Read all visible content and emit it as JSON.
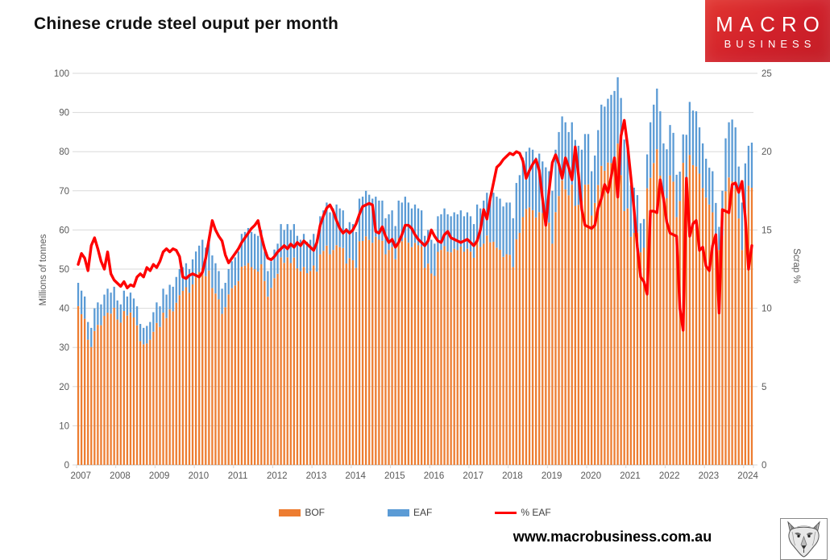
{
  "header": {
    "title": "Chinese crude steel ouput per month",
    "logo": {
      "line1": "MACRO",
      "line2": "BUSINESS",
      "bg_color": "#d0202a",
      "text_color": "#ffffff"
    }
  },
  "footer": {
    "url": "www.macrobusiness.com.au"
  },
  "wolf_stamp": {
    "name": "wolf-drawing"
  },
  "chart_data": {
    "type": "bar",
    "subtype": "stacked-bars-with-line",
    "title": "Chinese crude steel ouput per month",
    "left_axis": {
      "label": "Millions of tonnes",
      "min": 0,
      "max": 100,
      "step": 10
    },
    "right_axis": {
      "label": "Scrap %",
      "min": 0,
      "max": 25,
      "step": 5
    },
    "grid": "horizontal",
    "x_ticks": [
      "2007",
      "2008",
      "2009",
      "2010",
      "2011",
      "2012",
      "2013",
      "2014",
      "2015",
      "2016",
      "2017",
      "2018",
      "2019",
      "2020",
      "2021",
      "2022",
      "2023",
      "2024"
    ],
    "start_month": "2007-01",
    "end_month": "2024-03",
    "legend": [
      {
        "label": "BOF",
        "type": "bar",
        "color": "#ED7D31"
      },
      {
        "label": "EAF",
        "type": "bar",
        "color": "#5B9BD5"
      },
      {
        "label": "% EAF",
        "type": "line",
        "color": "#FF0000"
      }
    ],
    "note": "Bars are stacked monthly crude steel output: BOF bottom segment, EAF top segment (left axis, Mt). EAF segment = total * eaf_pct/100, BOF = total - EAF. Red line = % EAF on right axis (Scrap %).",
    "monthly": {
      "total_mt": [
        46.5,
        44.5,
        43.0,
        36.5,
        35.0,
        40.0,
        41.5,
        41.0,
        43.5,
        45.0,
        44.0,
        45.5,
        42.0,
        41.0,
        44.5,
        43.0,
        44.0,
        42.5,
        40.5,
        36.0,
        35.0,
        35.5,
        36.5,
        39.0,
        41.5,
        40.5,
        45.0,
        43.5,
        46.0,
        45.5,
        48.0,
        50.0,
        50.5,
        51.5,
        50.0,
        52.5,
        54.5,
        56.0,
        57.5,
        55.5,
        58.0,
        53.5,
        51.5,
        49.5,
        45.0,
        46.5,
        50.0,
        52.0,
        53.0,
        54.5,
        59.0,
        59.5,
        60.5,
        59.5,
        59.0,
        58.5,
        60.0,
        54.5,
        49.5,
        52.0,
        55.0,
        56.5,
        61.5,
        60.0,
        61.5,
        60.0,
        61.5,
        58.5,
        57.5,
        59.0,
        57.0,
        57.5,
        59.0,
        57.5,
        63.5,
        65.0,
        67.0,
        64.5,
        65.5,
        66.5,
        65.5,
        65.0,
        60.5,
        62.0,
        61.5,
        59.5,
        68.0,
        68.5,
        70.0,
        69.0,
        68.0,
        68.5,
        67.5,
        67.5,
        63.0,
        64.0,
        65.0,
        61.0,
        67.5,
        67.0,
        68.5,
        67.0,
        65.5,
        66.5,
        65.5,
        65.0,
        58.5,
        60.0,
        57.5,
        56.5,
        63.5,
        64.0,
        65.5,
        64.0,
        63.5,
        64.5,
        64.0,
        65.0,
        63.5,
        64.5,
        63.5,
        61.5,
        66.5,
        65.5,
        67.5,
        69.5,
        68.5,
        69.5,
        68.5,
        68.0,
        66.0,
        67.0,
        67.0,
        63.0,
        72.0,
        74.0,
        78.5,
        80.0,
        81.0,
        80.5,
        78.5,
        79.5,
        77.5,
        76.0,
        75.0,
        70.0,
        80.5,
        85.0,
        89.0,
        87.5,
        85.0,
        87.5,
        83.0,
        81.5,
        80.5,
        84.5,
        84.5,
        75.0,
        79.0,
        85.5,
        92.0,
        91.5,
        93.5,
        94.5,
        95.5,
        99.0,
        93.7,
        83.1,
        82.3,
        71.4,
        70.8,
        68.9,
        61.7,
        62.8,
        79.3,
        87.5,
        92.0,
        96.1,
        90.3,
        82.1,
        80.6,
        86.8,
        84.8,
        74.1,
        74.9,
        84.4,
        84.3,
        92.7,
        90.5,
        90.3,
        86.2,
        82.1,
        78.2,
        75.9,
        75.0,
        66.9,
        60.8,
        70.0,
        83.4,
        87.5,
        88.2,
        86.2,
        76.2,
        67.0,
        77.0,
        81.5,
        82.3
      ],
      "eaf_pct": [
        12.8,
        13.5,
        13.2,
        12.4,
        14.0,
        14.5,
        13.8,
        13.0,
        12.5,
        13.6,
        12.2,
        11.8,
        11.6,
        11.4,
        11.7,
        11.3,
        11.5,
        11.4,
        12.0,
        12.2,
        12.0,
        12.6,
        12.4,
        12.8,
        12.6,
        13.0,
        13.6,
        13.8,
        13.6,
        13.8,
        13.7,
        13.3,
        12.0,
        11.9,
        12.1,
        12.2,
        12.1,
        12.0,
        12.3,
        13.2,
        14.4,
        15.6,
        15.0,
        14.6,
        14.3,
        13.4,
        12.9,
        13.2,
        13.5,
        13.8,
        14.2,
        14.5,
        14.8,
        15.1,
        15.3,
        15.6,
        14.6,
        13.8,
        13.2,
        13.1,
        13.3,
        13.6,
        13.8,
        14.0,
        13.8,
        14.1,
        13.9,
        14.2,
        14.0,
        14.3,
        14.1,
        13.9,
        13.7,
        14.2,
        15.3,
        15.9,
        16.4,
        16.6,
        16.2,
        15.6,
        15.1,
        14.8,
        15.0,
        14.8,
        15.0,
        15.4,
        16.0,
        16.5,
        16.6,
        16.7,
        16.6,
        14.9,
        14.8,
        15.2,
        14.6,
        14.2,
        14.4,
        13.9,
        14.2,
        14.7,
        15.3,
        15.3,
        15.1,
        14.7,
        14.4,
        14.2,
        14.0,
        14.3,
        15.0,
        14.6,
        14.3,
        14.2,
        14.7,
        14.9,
        14.5,
        14.4,
        14.3,
        14.2,
        14.3,
        14.4,
        14.2,
        14.0,
        14.3,
        15.0,
        16.3,
        15.7,
        17.0,
        18.0,
        19.0,
        19.2,
        19.5,
        19.7,
        19.9,
        19.8,
        20.0,
        19.9,
        19.4,
        18.3,
        18.8,
        19.2,
        19.5,
        18.8,
        17.0,
        15.3,
        17.5,
        19.3,
        19.8,
        19.2,
        18.3,
        19.6,
        19.0,
        18.2,
        20.3,
        18.5,
        16.3,
        15.3,
        15.2,
        15.1,
        15.3,
        16.4,
        17.0,
        17.9,
        17.4,
        18.4,
        19.6,
        17.1,
        21.0,
        22.0,
        20.4,
        18.4,
        16.3,
        13.9,
        12.0,
        11.7,
        10.9,
        16.2,
        16.2,
        16.1,
        18.2,
        17.0,
        15.5,
        14.8,
        14.7,
        14.6,
        10.0,
        8.6,
        18.3,
        14.6,
        15.4,
        15.6,
        13.7,
        13.9,
        12.7,
        12.4,
        14.0,
        14.7,
        9.7,
        16.3,
        16.2,
        16.1,
        17.9,
        18.0,
        17.4,
        18.1,
        15.8,
        12.5,
        14.0
      ]
    },
    "colors": {
      "bof": "#ED7D31",
      "eaf": "#5B9BD5",
      "line": "#FF0000",
      "grid": "#D9D9D9",
      "axis_text": "#595959",
      "axis_line": "#BFBFBF"
    }
  }
}
